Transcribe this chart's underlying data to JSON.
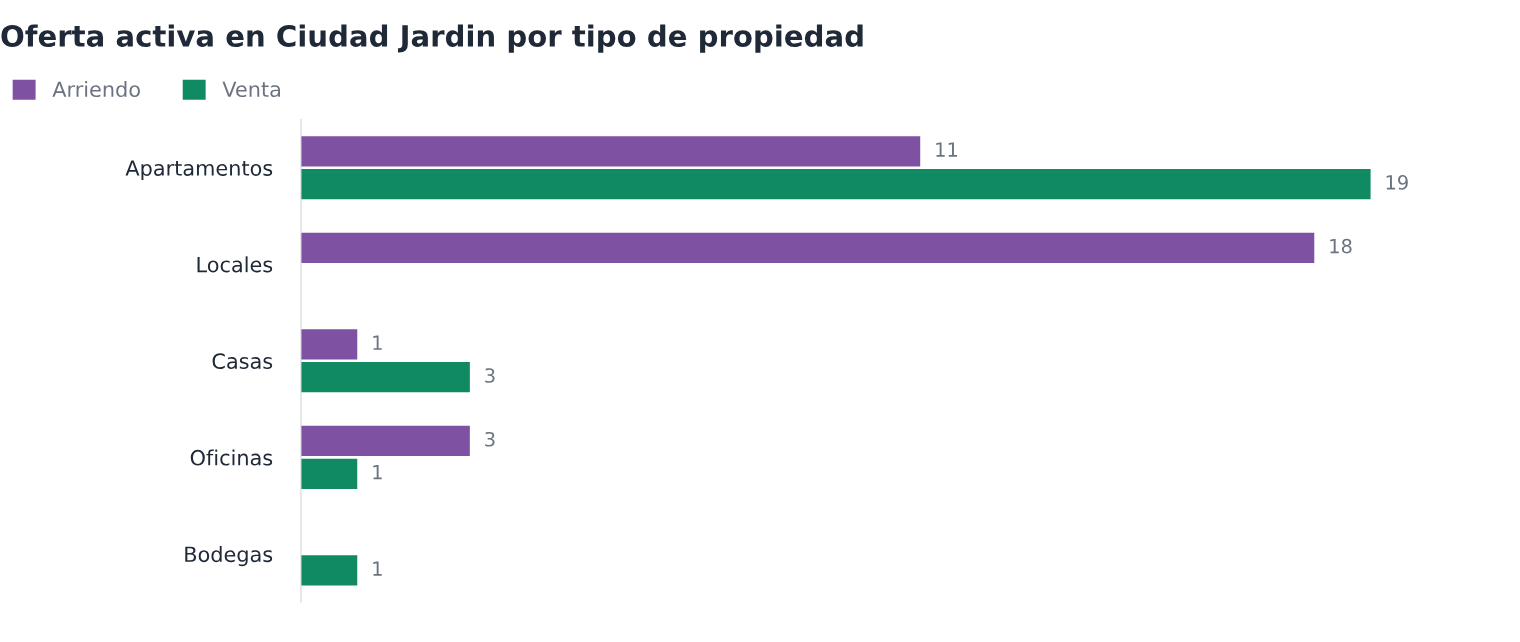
{
  "chart_data": {
    "type": "bar",
    "orientation": "horizontal",
    "title": "Oferta activa en Ciudad Jardin por tipo de propiedad",
    "categories": [
      "Apartamentos",
      "Locales",
      "Casas",
      "Oficinas",
      "Bodegas"
    ],
    "series": [
      {
        "name": "Arriendo",
        "color": "#7f51a3",
        "values": [
          11,
          18,
          1,
          3,
          null
        ]
      },
      {
        "name": "Venta",
        "color": "#0f8a62",
        "values": [
          19,
          null,
          3,
          1,
          1
        ]
      }
    ],
    "data_labels": true,
    "legend": "top left",
    "grid": false
  }
}
